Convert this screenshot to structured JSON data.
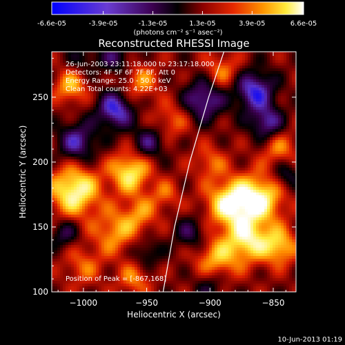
{
  "colorbar": {
    "tick_labels": [
      "-6.6e-05",
      "-3.9e-05",
      "-1.3e-05",
      "1.3e-05",
      "3.9e-05",
      "6.6e-05"
    ],
    "units_label": "(photons cm⁻² s⁻¹ asec⁻²)"
  },
  "plot": {
    "title": "Reconstructed RHESSI Image",
    "info_lines": [
      "26-Jun-2003 23:11:18.000 to 23:17:18.000",
      "Detectors: 4F 5F 6F 7F 8F, Att 0",
      "Energy Range: 25.0 - 50.0 keV",
      "Clean    Total counts: 4.22E+03"
    ],
    "peak_text": "Position of Peak = [-867,168]",
    "xlabel": "Heliocentric X (arcsec)",
    "ylabel": "Heliocentric Y (arcsec)"
  },
  "footer": {
    "timestamp": "10-Jun-2013 01:19"
  },
  "chart_data": {
    "type": "heatmap",
    "title": "Reconstructed RHESSI Image",
    "xlabel": "Heliocentric X (arcsec)",
    "ylabel": "Heliocentric Y (arcsec)",
    "xlim": [
      -1025,
      -832
    ],
    "ylim": [
      100,
      285
    ],
    "x_ticks": [
      -1000,
      -950,
      -900,
      -850
    ],
    "y_ticks": [
      100,
      150,
      200,
      250
    ],
    "color_range": [
      -6.6e-05,
      6.6e-05
    ],
    "colormap": [
      "#0000ff",
      "#5a32c8",
      "#3c0050",
      "#000000",
      "#780000",
      "#dc1e00",
      "#ff8c00",
      "#ffeb3c",
      "#ffffff"
    ],
    "limb_curve": [
      [
        -937,
        100
      ],
      [
        -928,
        150
      ],
      [
        -916,
        200
      ],
      [
        -901,
        250
      ],
      [
        -889,
        285
      ]
    ],
    "peak": [
      -867,
      168
    ],
    "sources": [
      {
        "x": -1007,
        "y": 178,
        "v": 6.2e-05,
        "r": 14
      },
      {
        "x": -963,
        "y": 192,
        "v": 5.4e-05,
        "r": 11
      },
      {
        "x": -1010,
        "y": 258,
        "v": 4e-05,
        "r": 9
      },
      {
        "x": -955,
        "y": 262,
        "v": 3.2e-05,
        "r": 10
      },
      {
        "x": -975,
        "y": 146,
        "v": 3.6e-05,
        "r": 12
      },
      {
        "x": -955,
        "y": 160,
        "v": 3e-05,
        "r": 10
      },
      {
        "x": -1000,
        "y": 120,
        "v": 2.5e-05,
        "r": 11
      },
      {
        "x": -890,
        "y": 270,
        "v": 3e-05,
        "r": 10
      },
      {
        "x": -930,
        "y": 232,
        "v": 2.6e-05,
        "r": 10
      },
      {
        "x": -935,
        "y": 175,
        "v": 2.4e-05,
        "r": 8
      },
      {
        "x": -884,
        "y": 168,
        "v": 6e-05,
        "r": 13
      },
      {
        "x": -860,
        "y": 172,
        "v": 5.6e-05,
        "r": 13
      },
      {
        "x": -870,
        "y": 140,
        "v": 5.2e-05,
        "r": 12
      },
      {
        "x": -845,
        "y": 135,
        "v": 4.5e-05,
        "r": 10
      },
      {
        "x": -895,
        "y": 125,
        "v": 4e-05,
        "r": 12
      },
      {
        "x": -900,
        "y": 200,
        "v": 2.6e-05,
        "r": 9
      },
      {
        "x": -845,
        "y": 210,
        "v": 3e-05,
        "r": 10
      },
      {
        "x": -960,
        "y": 110,
        "v": 3e-05,
        "r": 9
      },
      {
        "x": -975,
        "y": 240,
        "v": -5.5e-05,
        "r": 10
      },
      {
        "x": -1005,
        "y": 215,
        "v": -4.5e-05,
        "r": 11
      },
      {
        "x": -948,
        "y": 215,
        "v": -3.5e-05,
        "r": 9
      },
      {
        "x": -1015,
        "y": 145,
        "v": -3e-05,
        "r": 8
      },
      {
        "x": -975,
        "y": 280,
        "v": -3e-05,
        "r": 9
      },
      {
        "x": -905,
        "y": 248,
        "v": -4.8e-05,
        "r": 11
      },
      {
        "x": -865,
        "y": 255,
        "v": -5.5e-05,
        "r": 11
      },
      {
        "x": -855,
        "y": 230,
        "v": -4.5e-05,
        "r": 9
      },
      {
        "x": -915,
        "y": 145,
        "v": -3e-05,
        "r": 9
      },
      {
        "x": -900,
        "y": 105,
        "v": -2.5e-05,
        "r": 9
      },
      {
        "x": -840,
        "y": 190,
        "v": -3e-05,
        "r": 8
      },
      {
        "x": -950,
        "y": 130,
        "v": -2.5e-05,
        "r": 8
      },
      {
        "x": -1000,
        "y": 280,
        "v": -2e-05,
        "r": 8
      }
    ]
  }
}
